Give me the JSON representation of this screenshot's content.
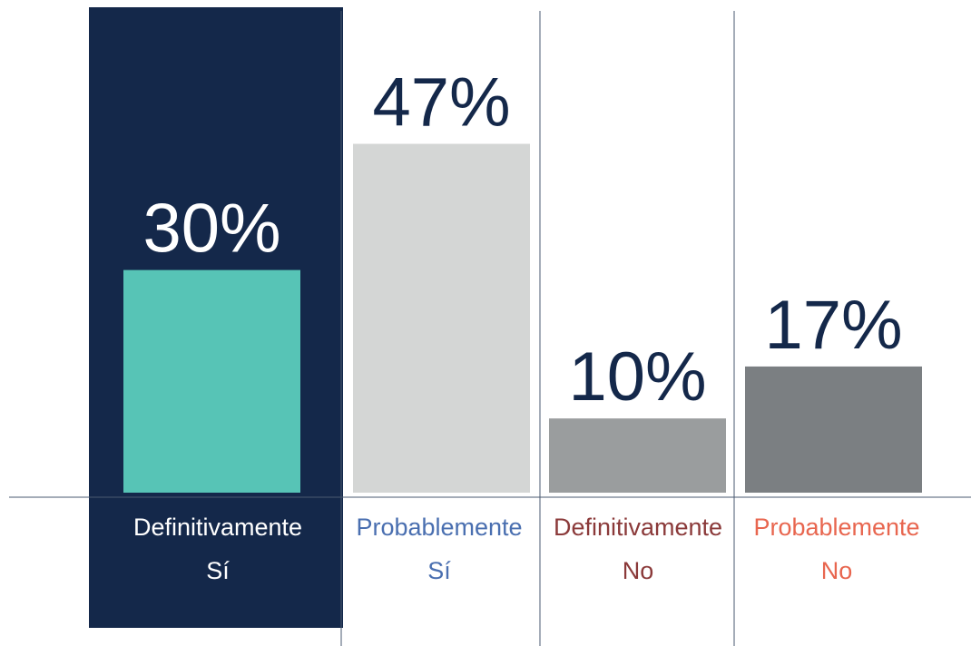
{
  "chart_data": {
    "type": "bar",
    "categories": [
      [
        "Definitivamente",
        "Sí"
      ],
      [
        "Probablemente",
        "Sí"
      ],
      [
        "Definitivamente",
        "No"
      ],
      [
        "Probablemente",
        "No"
      ]
    ],
    "values": [
      30,
      47,
      10,
      17
    ],
    "value_labels": [
      "30%",
      "47%",
      "10%",
      "17%"
    ],
    "colors": [
      "#57c4b6",
      "#d4d6d5",
      "#9a9d9e",
      "#7b7f82"
    ],
    "label_colors": [
      "#ffffff",
      "#4a6fb0",
      "#8b3a3a",
      "#e8664f"
    ],
    "value_label_colors": [
      "#ffffff",
      "#14284a",
      "#14284a",
      "#14284a"
    ],
    "highlight": 0,
    "highlight_color": "#14284a"
  }
}
